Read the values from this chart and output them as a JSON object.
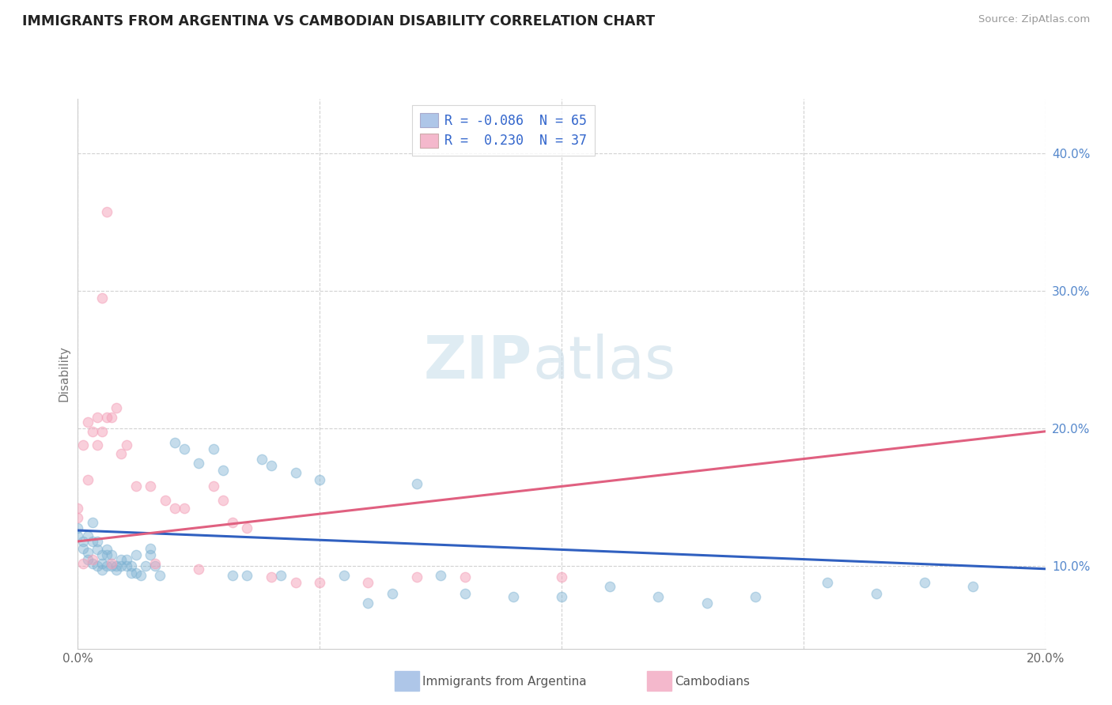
{
  "title": "IMMIGRANTS FROM ARGENTINA VS CAMBODIAN DISABILITY CORRELATION CHART",
  "source": "Source: ZipAtlas.com",
  "ylabel": "Disability",
  "xlim": [
    0.0,
    0.2
  ],
  "ylim": [
    0.04,
    0.44
  ],
  "yticks": [
    0.1,
    0.2,
    0.3,
    0.4
  ],
  "right_ytick_labels": [
    "10.0%",
    "20.0%",
    "30.0%",
    "40.0%"
  ],
  "xticks": [
    0.0,
    0.05,
    0.1,
    0.15,
    0.2
  ],
  "xtick_labels": [
    "0.0%",
    "",
    "",
    "",
    "20.0%"
  ],
  "legend_entries": [
    {
      "label": "R = -0.086  N = 65",
      "color": "#aec6e8"
    },
    {
      "label": "R =  0.230  N = 37",
      "color": "#f4b8cc"
    }
  ],
  "blue_color": "#7fb3d3",
  "pink_color": "#f4a0b8",
  "blue_line_color": "#3060c0",
  "pink_line_color": "#e06080",
  "watermark_zip": "ZIP",
  "watermark_atlas": "atlas",
  "blue_line": {
    "x0": 0.0,
    "y0": 0.126,
    "x1": 0.2,
    "y1": 0.098
  },
  "pink_line": {
    "x0": 0.0,
    "y0": 0.118,
    "x1": 0.2,
    "y1": 0.198
  },
  "argentina_points": [
    [
      0.0,
      0.128
    ],
    [
      0.0,
      0.122
    ],
    [
      0.001,
      0.113
    ],
    [
      0.001,
      0.118
    ],
    [
      0.002,
      0.105
    ],
    [
      0.002,
      0.11
    ],
    [
      0.002,
      0.122
    ],
    [
      0.003,
      0.102
    ],
    [
      0.003,
      0.118
    ],
    [
      0.003,
      0.132
    ],
    [
      0.004,
      0.1
    ],
    [
      0.004,
      0.112
    ],
    [
      0.004,
      0.118
    ],
    [
      0.005,
      0.097
    ],
    [
      0.005,
      0.102
    ],
    [
      0.005,
      0.108
    ],
    [
      0.006,
      0.1
    ],
    [
      0.006,
      0.108
    ],
    [
      0.006,
      0.112
    ],
    [
      0.007,
      0.1
    ],
    [
      0.007,
      0.108
    ],
    [
      0.008,
      0.097
    ],
    [
      0.008,
      0.1
    ],
    [
      0.009,
      0.1
    ],
    [
      0.009,
      0.105
    ],
    [
      0.01,
      0.1
    ],
    [
      0.01,
      0.105
    ],
    [
      0.011,
      0.095
    ],
    [
      0.011,
      0.1
    ],
    [
      0.012,
      0.095
    ],
    [
      0.012,
      0.108
    ],
    [
      0.013,
      0.093
    ],
    [
      0.014,
      0.1
    ],
    [
      0.015,
      0.108
    ],
    [
      0.015,
      0.113
    ],
    [
      0.016,
      0.1
    ],
    [
      0.017,
      0.093
    ],
    [
      0.02,
      0.19
    ],
    [
      0.022,
      0.185
    ],
    [
      0.025,
      0.175
    ],
    [
      0.028,
      0.185
    ],
    [
      0.03,
      0.17
    ],
    [
      0.032,
      0.093
    ],
    [
      0.035,
      0.093
    ],
    [
      0.038,
      0.178
    ],
    [
      0.04,
      0.173
    ],
    [
      0.042,
      0.093
    ],
    [
      0.045,
      0.168
    ],
    [
      0.05,
      0.163
    ],
    [
      0.055,
      0.093
    ],
    [
      0.06,
      0.073
    ],
    [
      0.065,
      0.08
    ],
    [
      0.07,
      0.16
    ],
    [
      0.075,
      0.093
    ],
    [
      0.08,
      0.08
    ],
    [
      0.09,
      0.078
    ],
    [
      0.1,
      0.078
    ],
    [
      0.11,
      0.085
    ],
    [
      0.12,
      0.078
    ],
    [
      0.13,
      0.073
    ],
    [
      0.14,
      0.078
    ],
    [
      0.155,
      0.088
    ],
    [
      0.165,
      0.08
    ],
    [
      0.175,
      0.088
    ],
    [
      0.185,
      0.085
    ]
  ],
  "cambodian_points": [
    [
      0.0,
      0.135
    ],
    [
      0.0,
      0.142
    ],
    [
      0.001,
      0.102
    ],
    [
      0.001,
      0.188
    ],
    [
      0.002,
      0.163
    ],
    [
      0.002,
      0.205
    ],
    [
      0.003,
      0.105
    ],
    [
      0.003,
      0.198
    ],
    [
      0.004,
      0.208
    ],
    [
      0.004,
      0.188
    ],
    [
      0.005,
      0.295
    ],
    [
      0.005,
      0.198
    ],
    [
      0.006,
      0.208
    ],
    [
      0.006,
      0.358
    ],
    [
      0.007,
      0.102
    ],
    [
      0.007,
      0.208
    ],
    [
      0.008,
      0.215
    ],
    [
      0.009,
      0.182
    ],
    [
      0.01,
      0.188
    ],
    [
      0.012,
      0.158
    ],
    [
      0.015,
      0.158
    ],
    [
      0.016,
      0.102
    ],
    [
      0.018,
      0.148
    ],
    [
      0.02,
      0.142
    ],
    [
      0.022,
      0.142
    ],
    [
      0.025,
      0.098
    ],
    [
      0.028,
      0.158
    ],
    [
      0.03,
      0.148
    ],
    [
      0.032,
      0.132
    ],
    [
      0.035,
      0.128
    ],
    [
      0.04,
      0.092
    ],
    [
      0.045,
      0.088
    ],
    [
      0.05,
      0.088
    ],
    [
      0.06,
      0.088
    ],
    [
      0.07,
      0.092
    ],
    [
      0.08,
      0.092
    ],
    [
      0.1,
      0.092
    ]
  ]
}
